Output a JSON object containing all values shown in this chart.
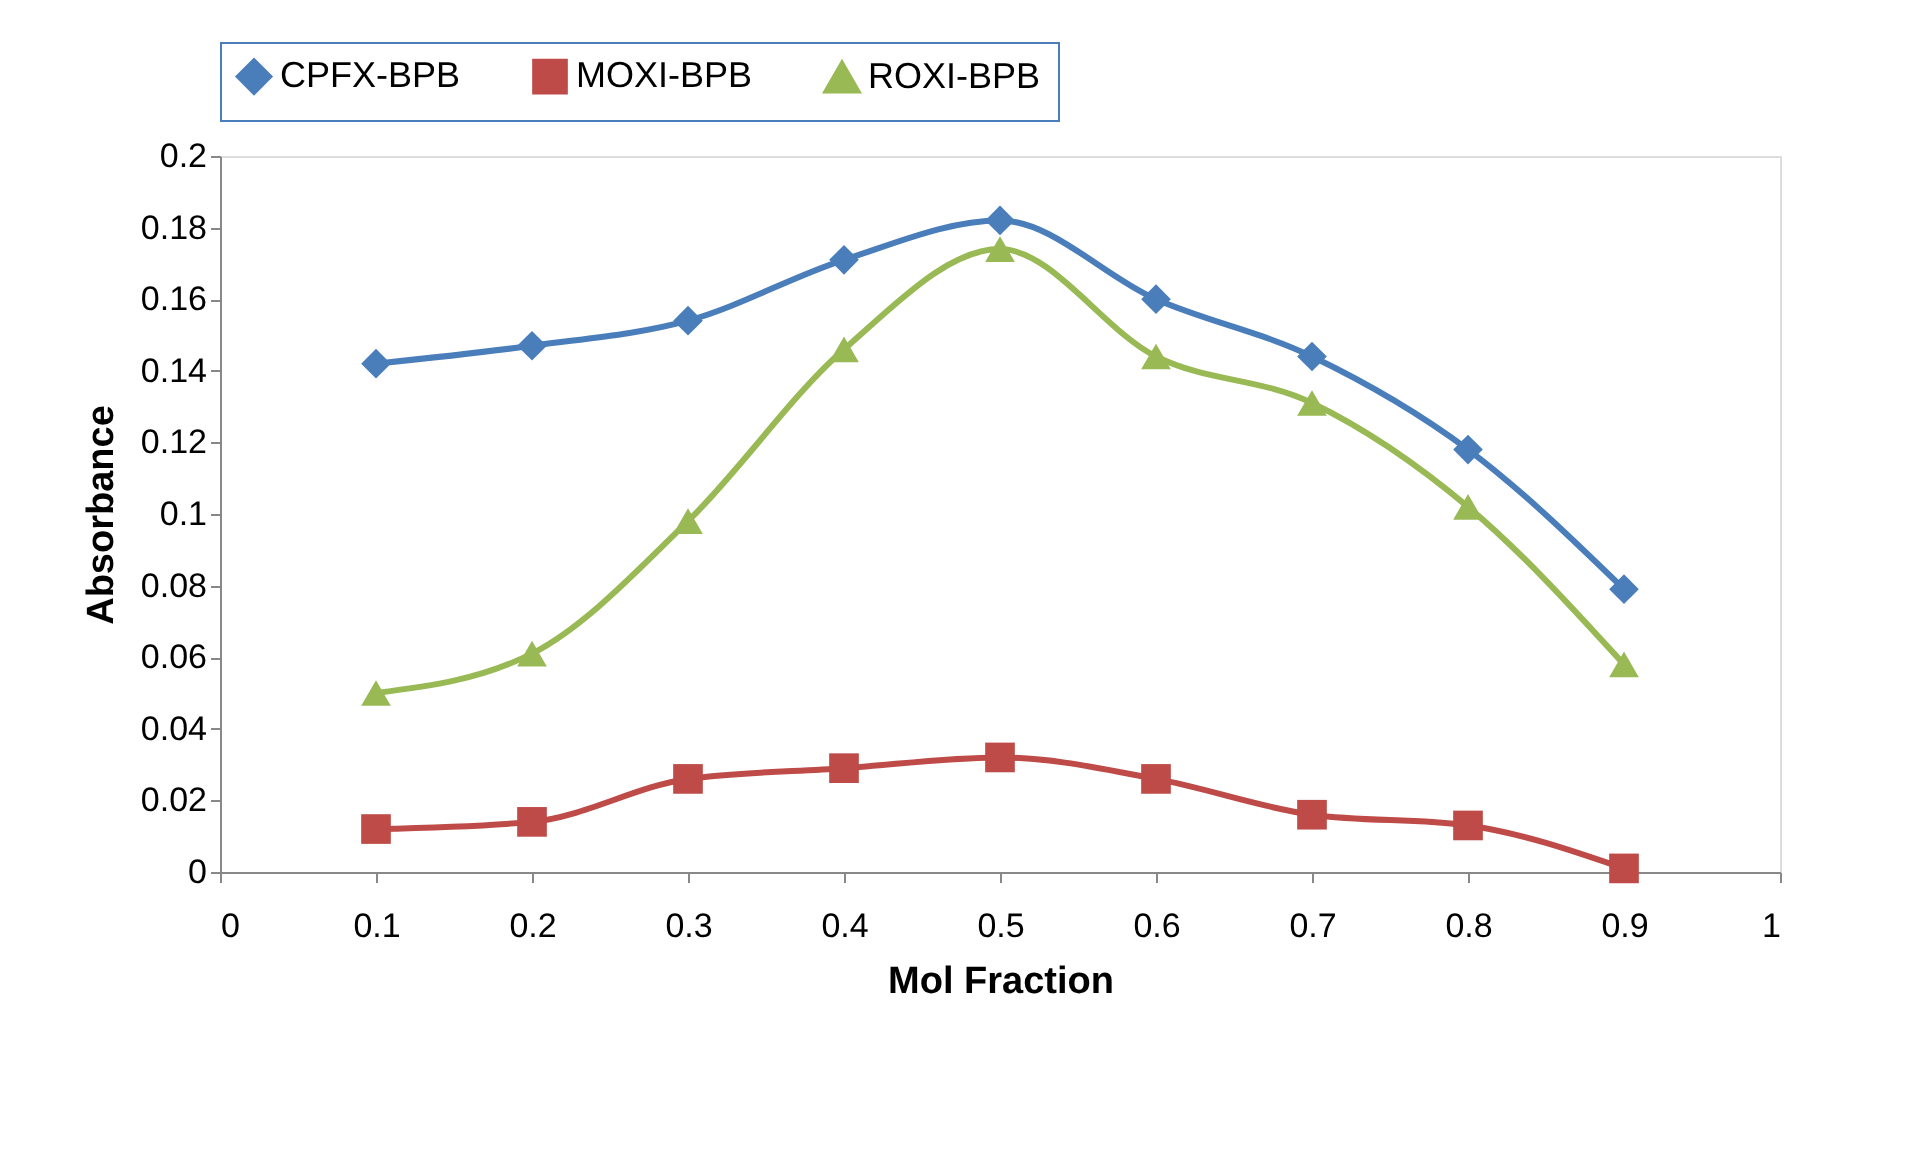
{
  "chart_data": {
    "type": "line",
    "xlabel": "Mol Fraction",
    "ylabel": "Absorbance",
    "x": [
      0.1,
      0.2,
      0.3,
      0.4,
      0.5,
      0.6,
      0.7,
      0.8,
      0.9
    ],
    "series": [
      {
        "name": "CPFX-BPB",
        "color": "#4a7ebb",
        "marker": "diamond",
        "values": [
          0.142,
          0.147,
          0.154,
          0.171,
          0.182,
          0.16,
          0.144,
          0.118,
          0.079
        ]
      },
      {
        "name": "MOXI-BPB",
        "color": "#be4b48",
        "marker": "square",
        "values": [
          0.012,
          0.014,
          0.026,
          0.029,
          0.032,
          0.026,
          0.016,
          0.013,
          0.001
        ]
      },
      {
        "name": "ROXI-BPB",
        "color": "#98b954",
        "marker": "triangle",
        "values": [
          0.05,
          0.061,
          0.098,
          0.146,
          0.174,
          0.144,
          0.131,
          0.102,
          0.058
        ]
      }
    ],
    "xlim": [
      0,
      1
    ],
    "xticks": [
      0,
      0.1,
      0.2,
      0.3,
      0.4,
      0.5,
      0.6,
      0.7,
      0.8,
      0.9,
      1
    ],
    "ylim": [
      0,
      0.2
    ],
    "yticks": [
      0,
      0.02,
      0.04,
      0.06,
      0.08,
      0.1,
      0.12,
      0.14,
      0.16,
      0.18,
      0.2
    ],
    "grid": false,
    "legend": "top",
    "line_style": "solid"
  }
}
